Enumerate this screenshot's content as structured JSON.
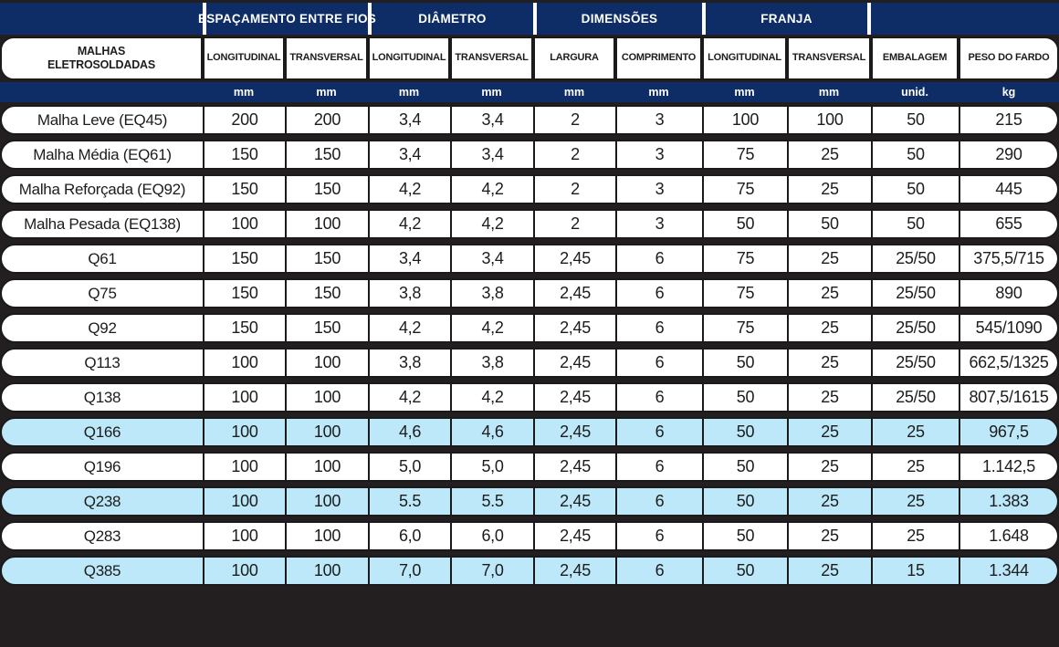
{
  "table": {
    "group_headers": [
      {
        "label": "",
        "span": 1
      },
      {
        "label": "ESPAÇAMENTO ENTRE FIOS",
        "span": 2
      },
      {
        "label": "DIÂMETRO",
        "span": 2
      },
      {
        "label": "DIMENSÕES",
        "span": 2
      },
      {
        "label": "FRANJA",
        "span": 2
      },
      {
        "label": "",
        "span": 2
      }
    ],
    "column_headers": [
      "MALHAS\nELETROSOLDADAS",
      "LONGITUDINAL",
      "TRANSVERSAL",
      "LONGITUDINAL",
      "TRANSVERSAL",
      "LARGURA",
      "COMPRIMENTO",
      "LONGITUDINAL",
      "TRANSVERSAL",
      "EMBALAGEM",
      "PESO DO FARDO"
    ],
    "units": [
      "",
      "mm",
      "mm",
      "mm",
      "mm",
      "mm",
      "mm",
      "mm",
      "mm",
      "unid.",
      "kg"
    ],
    "rows": [
      {
        "name": "Malha Leve (EQ45)",
        "values": [
          "200",
          "200",
          "3,4",
          "3,4",
          "2",
          "3",
          "100",
          "100",
          "50",
          "215"
        ],
        "highlight": false
      },
      {
        "name": "Malha Média (EQ61)",
        "values": [
          "150",
          "150",
          "3,4",
          "3,4",
          "2",
          "3",
          "75",
          "25",
          "50",
          "290"
        ],
        "highlight": false
      },
      {
        "name": "Malha Reforçada (EQ92)",
        "values": [
          "150",
          "150",
          "4,2",
          "4,2",
          "2",
          "3",
          "75",
          "25",
          "50",
          "445"
        ],
        "highlight": false
      },
      {
        "name": "Malha Pesada (EQ138)",
        "values": [
          "100",
          "100",
          "4,2",
          "4,2",
          "2",
          "3",
          "50",
          "50",
          "50",
          "655"
        ],
        "highlight": false
      },
      {
        "name": "Q61",
        "values": [
          "150",
          "150",
          "3,4",
          "3,4",
          "2,45",
          "6",
          "75",
          "25",
          "25/50",
          "375,5/715"
        ],
        "highlight": false
      },
      {
        "name": "Q75",
        "values": [
          "150",
          "150",
          "3,8",
          "3,8",
          "2,45",
          "6",
          "75",
          "25",
          "25/50",
          "890"
        ],
        "highlight": false
      },
      {
        "name": "Q92",
        "values": [
          "150",
          "150",
          "4,2",
          "4,2",
          "2,45",
          "6",
          "75",
          "25",
          "25/50",
          "545/1090"
        ],
        "highlight": false
      },
      {
        "name": "Q113",
        "values": [
          "100",
          "100",
          "3,8",
          "3,8",
          "2,45",
          "6",
          "50",
          "25",
          "25/50",
          "662,5/1325"
        ],
        "highlight": false
      },
      {
        "name": "Q138",
        "values": [
          "100",
          "100",
          "4,2",
          "4,2",
          "2,45",
          "6",
          "50",
          "25",
          "25/50",
          "807,5/1615"
        ],
        "highlight": false
      },
      {
        "name": "Q166",
        "values": [
          "100",
          "100",
          "4,6",
          "4,6",
          "2,45",
          "6",
          "50",
          "25",
          "25",
          "967,5"
        ],
        "highlight": true
      },
      {
        "name": "Q196",
        "values": [
          "100",
          "100",
          "5,0",
          "5,0",
          "2,45",
          "6",
          "50",
          "25",
          "25",
          "1.142,5"
        ],
        "highlight": false
      },
      {
        "name": "Q238",
        "values": [
          "100",
          "100",
          "5.5",
          "5.5",
          "2,45",
          "6",
          "50",
          "25",
          "25",
          "1.383"
        ],
        "highlight": true
      },
      {
        "name": "Q283",
        "values": [
          "100",
          "100",
          "6,0",
          "6,0",
          "2,45",
          "6",
          "50",
          "25",
          "25",
          "1.648"
        ],
        "highlight": false
      },
      {
        "name": "Q385",
        "values": [
          "100",
          "100",
          "7,0",
          "7,0",
          "2,45",
          "6",
          "50",
          "25",
          "15",
          "1.344"
        ],
        "highlight": true
      }
    ]
  },
  "colors": {
    "header_navy": "#0e2c66",
    "row_highlight": "#bde8fa",
    "background": "#231f20",
    "border": "#1a1a1a",
    "header_text": "#ffffff",
    "cell_text": "#1c1c1c"
  }
}
